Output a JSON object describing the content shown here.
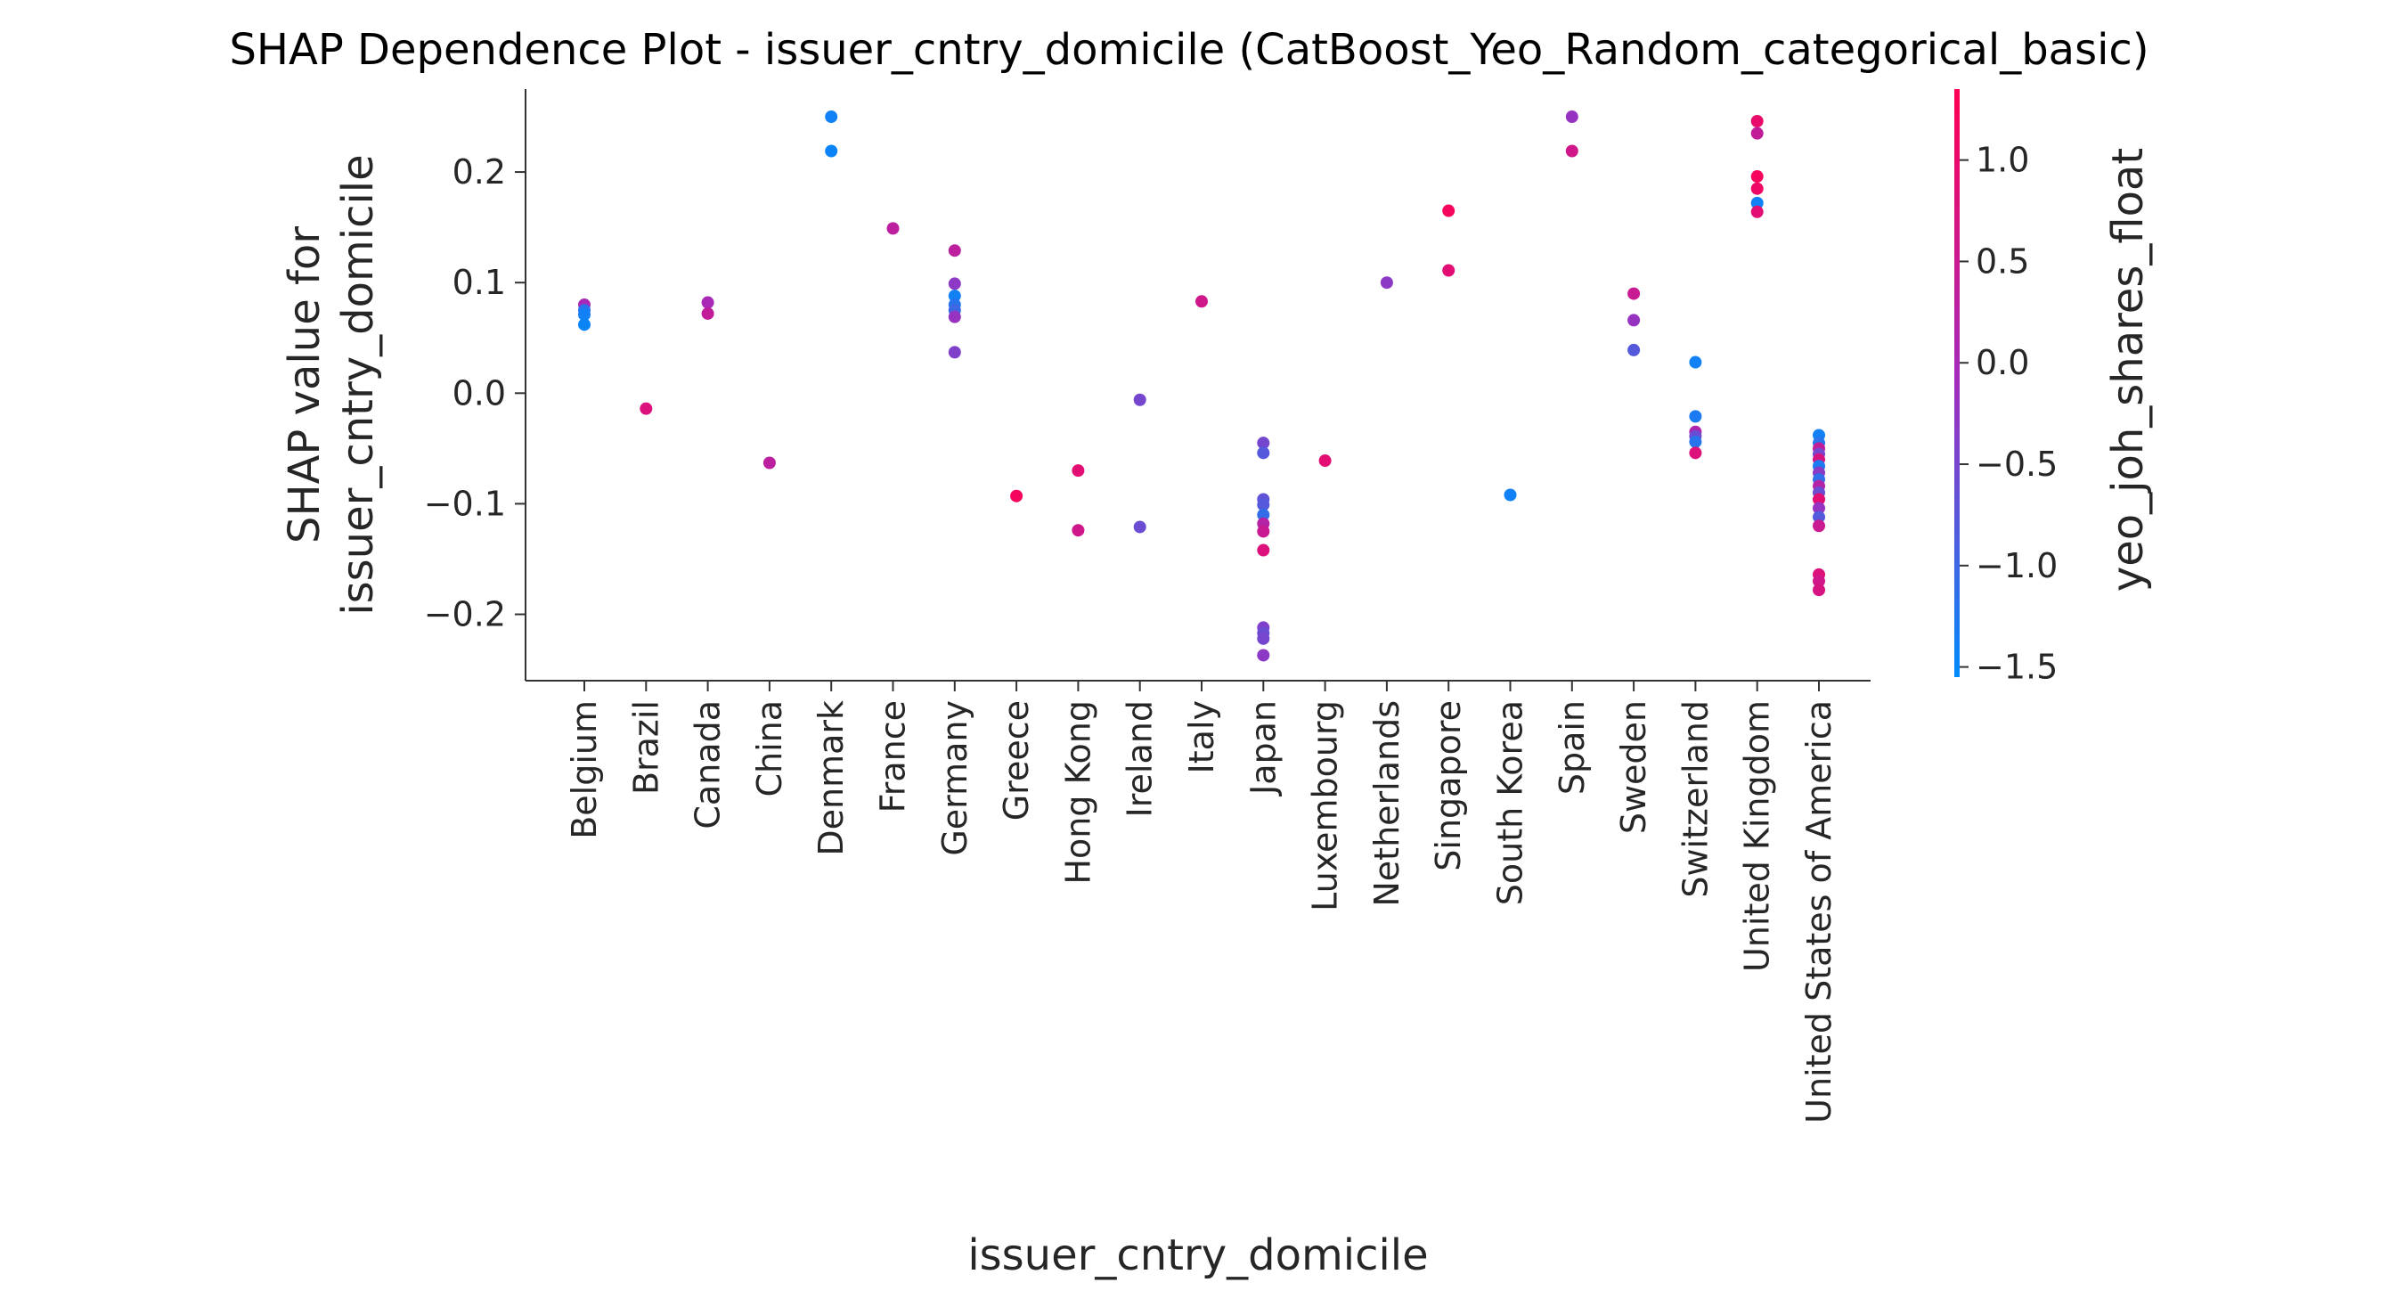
{
  "chart_data": {
    "type": "scatter",
    "title": "SHAP Dependence Plot - issuer_cntry_domicile (CatBoost_Yeo_Random_categorical_basic)",
    "xlabel": "issuer_cntry_domicile",
    "ylabel_lines": [
      "SHAP value for",
      "issuer_cntry_domicile"
    ],
    "ylim": [
      -0.26,
      0.275
    ],
    "yticks": [
      -0.2,
      -0.1,
      0.0,
      0.1,
      0.2
    ],
    "ytick_labels": [
      "−0.2",
      "−0.1",
      "0.0",
      "0.1",
      "0.2"
    ],
    "categories": [
      "Belgium",
      "Brazil",
      "Canada",
      "China",
      "Denmark",
      "France",
      "Germany",
      "Greece",
      "Hong Kong",
      "Ireland",
      "Italy",
      "Japan",
      "Luxembourg",
      "Netherlands",
      "Singapore",
      "South Korea",
      "Spain",
      "Sweden",
      "Switzerland",
      "United Kingdom",
      "United States of America"
    ],
    "colorbar": {
      "label": "yeo_joh_shares_float",
      "range": [
        -1.55,
        1.35
      ],
      "ticks": [
        1.0,
        0.5,
        0.0,
        -0.5,
        -1.0,
        -1.5
      ],
      "tick_labels": [
        "1.0",
        "0.5",
        "0.0",
        "−0.5",
        "−1.0",
        "−1.5"
      ],
      "color_low": "#008bfb",
      "color_mid": "#a22cbd",
      "color_high": "#ff0052"
    },
    "points": [
      {
        "category": "Belgium",
        "y": 0.08,
        "c": 0.0
      },
      {
        "category": "Belgium",
        "y": 0.075,
        "c": -1.2
      },
      {
        "category": "Belgium",
        "y": 0.071,
        "c": -1.4
      },
      {
        "category": "Belgium",
        "y": 0.062,
        "c": -1.45
      },
      {
        "category": "Brazil",
        "y": -0.014,
        "c": 0.8
      },
      {
        "category": "Canada",
        "y": 0.082,
        "c": 0.0
      },
      {
        "category": "Canada",
        "y": 0.072,
        "c": 0.4
      },
      {
        "category": "China",
        "y": -0.063,
        "c": 0.3
      },
      {
        "category": "Denmark",
        "y": 0.25,
        "c": -1.4
      },
      {
        "category": "Denmark",
        "y": 0.219,
        "c": -1.45
      },
      {
        "category": "France",
        "y": 0.149,
        "c": 0.3
      },
      {
        "category": "Germany",
        "y": 0.129,
        "c": 0.3
      },
      {
        "category": "Germany",
        "y": 0.099,
        "c": -0.3
      },
      {
        "category": "Germany",
        "y": 0.088,
        "c": -1.4
      },
      {
        "category": "Germany",
        "y": 0.08,
        "c": -1.2
      },
      {
        "category": "Germany",
        "y": 0.075,
        "c": -1.0
      },
      {
        "category": "Germany",
        "y": 0.069,
        "c": -0.2
      },
      {
        "category": "Germany",
        "y": 0.037,
        "c": -0.4
      },
      {
        "category": "Greece",
        "y": -0.093,
        "c": 1.2
      },
      {
        "category": "Hong Kong",
        "y": -0.07,
        "c": 0.9
      },
      {
        "category": "Hong Kong",
        "y": -0.124,
        "c": 0.6
      },
      {
        "category": "Ireland",
        "y": -0.006,
        "c": -0.5
      },
      {
        "category": "Ireland",
        "y": -0.121,
        "c": -0.6
      },
      {
        "category": "Italy",
        "y": 0.083,
        "c": 0.6
      },
      {
        "category": "Japan",
        "y": -0.045,
        "c": -0.5
      },
      {
        "category": "Japan",
        "y": -0.054,
        "c": -0.8
      },
      {
        "category": "Japan",
        "y": -0.096,
        "c": -0.7
      },
      {
        "category": "Japan",
        "y": -0.101,
        "c": -0.8
      },
      {
        "category": "Japan",
        "y": -0.11,
        "c": -1.1
      },
      {
        "category": "Japan",
        "y": -0.118,
        "c": 0.2
      },
      {
        "category": "Japan",
        "y": -0.125,
        "c": 0.5
      },
      {
        "category": "Japan",
        "y": -0.142,
        "c": 0.8
      },
      {
        "category": "Japan",
        "y": -0.212,
        "c": -0.4
      },
      {
        "category": "Japan",
        "y": -0.217,
        "c": -0.6
      },
      {
        "category": "Japan",
        "y": -0.222,
        "c": -0.5
      },
      {
        "category": "Japan",
        "y": -0.237,
        "c": -0.3
      },
      {
        "category": "Luxembourg",
        "y": -0.061,
        "c": 0.9
      },
      {
        "category": "Netherlands",
        "y": 0.1,
        "c": -0.3
      },
      {
        "category": "Singapore",
        "y": 0.165,
        "c": 1.2
      },
      {
        "category": "Singapore",
        "y": 0.111,
        "c": 0.9
      },
      {
        "category": "South Korea",
        "y": -0.092,
        "c": -1.4
      },
      {
        "category": "Spain",
        "y": 0.25,
        "c": -0.2
      },
      {
        "category": "Spain",
        "y": 0.219,
        "c": 0.6
      },
      {
        "category": "Sweden",
        "y": 0.09,
        "c": 0.5
      },
      {
        "category": "Sweden",
        "y": 0.066,
        "c": -0.2
      },
      {
        "category": "Sweden",
        "y": 0.039,
        "c": -0.8
      },
      {
        "category": "Switzerland",
        "y": 0.028,
        "c": -1.4
      },
      {
        "category": "Switzerland",
        "y": -0.021,
        "c": -1.3
      },
      {
        "category": "Switzerland",
        "y": -0.035,
        "c": 0.1
      },
      {
        "category": "Switzerland",
        "y": -0.039,
        "c": -0.6
      },
      {
        "category": "Switzerland",
        "y": -0.044,
        "c": -1.2
      },
      {
        "category": "Switzerland",
        "y": -0.054,
        "c": 0.8
      },
      {
        "category": "United Kingdom",
        "y": 0.246,
        "c": 1.0
      },
      {
        "category": "United Kingdom",
        "y": 0.235,
        "c": 0.4
      },
      {
        "category": "United Kingdom",
        "y": 0.196,
        "c": 1.2
      },
      {
        "category": "United Kingdom",
        "y": 0.185,
        "c": 1.1
      },
      {
        "category": "United Kingdom",
        "y": 0.172,
        "c": -1.4
      },
      {
        "category": "United Kingdom",
        "y": 0.164,
        "c": 0.9
      },
      {
        "category": "United States of America",
        "y": -0.038,
        "c": -1.4
      },
      {
        "category": "United States of America",
        "y": -0.045,
        "c": -1.2
      },
      {
        "category": "United States of America",
        "y": -0.05,
        "c": 0.4
      },
      {
        "category": "United States of America",
        "y": -0.055,
        "c": -0.5
      },
      {
        "category": "United States of America",
        "y": -0.06,
        "c": 0.7
      },
      {
        "category": "United States of America",
        "y": -0.066,
        "c": -1.3
      },
      {
        "category": "United States of America",
        "y": -0.072,
        "c": -0.3
      },
      {
        "category": "United States of America",
        "y": -0.078,
        "c": -1.1
      },
      {
        "category": "United States of America",
        "y": -0.084,
        "c": 0.2
      },
      {
        "category": "United States of America",
        "y": -0.09,
        "c": -0.6
      },
      {
        "category": "United States of America",
        "y": -0.096,
        "c": 0.9
      },
      {
        "category": "United States of America",
        "y": -0.104,
        "c": -0.2
      },
      {
        "category": "United States of America",
        "y": -0.112,
        "c": -0.8
      },
      {
        "category": "United States of America",
        "y": -0.12,
        "c": 0.5
      },
      {
        "category": "United States of America",
        "y": -0.164,
        "c": 0.8
      },
      {
        "category": "United States of America",
        "y": -0.17,
        "c": 0.6
      },
      {
        "category": "United States of America",
        "y": -0.178,
        "c": 0.7
      }
    ]
  }
}
